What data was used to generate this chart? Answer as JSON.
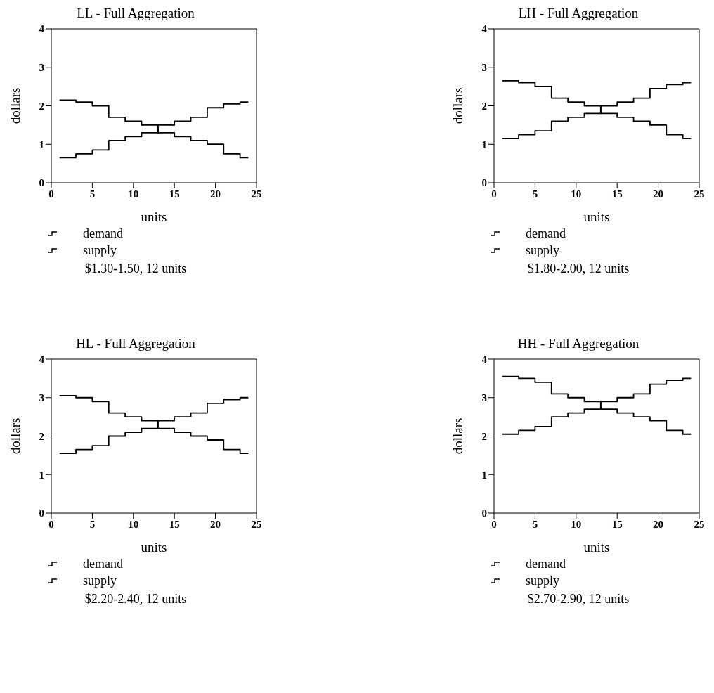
{
  "chart_data": [
    {
      "type": "step",
      "title": "LL - Full Aggregation",
      "xlabel": "units",
      "ylabel": "dollars",
      "xlim": [
        0,
        25
      ],
      "xticks": [
        0,
        5,
        10,
        15,
        20,
        25
      ],
      "ylim": [
        0,
        4
      ],
      "yticks": [
        0,
        1,
        2,
        3,
        4
      ],
      "grid": false,
      "legend": "bottom",
      "marker": "none",
      "line_style": "solid",
      "annotations": [
        "$1.30-1.50, 12 units"
      ],
      "series": [
        {
          "name": "demand",
          "color": "#000000",
          "x": [
            1,
            3,
            5,
            7,
            9,
            11,
            13,
            15,
            17,
            19,
            21,
            23,
            24
          ],
          "values": [
            2.15,
            2.1,
            2.0,
            1.7,
            1.6,
            1.5,
            1.3,
            1.2,
            1.1,
            1.0,
            0.75,
            0.65,
            0.65
          ]
        },
        {
          "name": "supply",
          "color": "#000000",
          "x": [
            1,
            3,
            5,
            7,
            9,
            11,
            13,
            15,
            17,
            19,
            21,
            23,
            24
          ],
          "values": [
            0.65,
            0.75,
            0.85,
            1.1,
            1.2,
            1.3,
            1.5,
            1.6,
            1.7,
            1.95,
            2.05,
            2.1,
            2.1
          ]
        }
      ]
    },
    {
      "type": "step",
      "title": "LH - Full Aggregation",
      "xlabel": "units",
      "ylabel": "dollars",
      "xlim": [
        0,
        25
      ],
      "xticks": [
        0,
        5,
        10,
        15,
        20,
        25
      ],
      "ylim": [
        0,
        4
      ],
      "yticks": [
        0,
        1,
        2,
        3,
        4
      ],
      "grid": false,
      "legend": "bottom",
      "marker": "none",
      "line_style": "solid",
      "annotations": [
        "$1.80-2.00, 12 units"
      ],
      "series": [
        {
          "name": "demand",
          "color": "#000000",
          "x": [
            1,
            3,
            5,
            7,
            9,
            11,
            13,
            15,
            17,
            19,
            21,
            23,
            24
          ],
          "values": [
            2.65,
            2.6,
            2.5,
            2.2,
            2.1,
            2.0,
            1.8,
            1.7,
            1.6,
            1.5,
            1.25,
            1.15,
            1.15
          ]
        },
        {
          "name": "supply",
          "color": "#000000",
          "x": [
            1,
            3,
            5,
            7,
            9,
            11,
            13,
            15,
            17,
            19,
            21,
            23,
            24
          ],
          "values": [
            1.15,
            1.25,
            1.35,
            1.6,
            1.7,
            1.8,
            2.0,
            2.1,
            2.2,
            2.45,
            2.55,
            2.6,
            2.6
          ]
        }
      ]
    },
    {
      "type": "step",
      "title": "HL - Full Aggregation",
      "xlabel": "units",
      "ylabel": "dollars",
      "xlim": [
        0,
        25
      ],
      "xticks": [
        0,
        5,
        10,
        15,
        20,
        25
      ],
      "ylim": [
        0,
        4
      ],
      "yticks": [
        0,
        1,
        2,
        3,
        4
      ],
      "grid": false,
      "legend": "bottom",
      "marker": "none",
      "line_style": "solid",
      "annotations": [
        "$2.20-2.40, 12 units"
      ],
      "series": [
        {
          "name": "demand",
          "color": "#000000",
          "x": [
            1,
            3,
            5,
            7,
            9,
            11,
            13,
            15,
            17,
            19,
            21,
            23,
            24
          ],
          "values": [
            3.05,
            3.0,
            2.9,
            2.6,
            2.5,
            2.4,
            2.2,
            2.1,
            2.0,
            1.9,
            1.65,
            1.55,
            1.55
          ]
        },
        {
          "name": "supply",
          "color": "#000000",
          "x": [
            1,
            3,
            5,
            7,
            9,
            11,
            13,
            15,
            17,
            19,
            21,
            23,
            24
          ],
          "values": [
            1.55,
            1.65,
            1.75,
            2.0,
            2.1,
            2.2,
            2.4,
            2.5,
            2.6,
            2.85,
            2.95,
            3.0,
            3.0
          ]
        }
      ]
    },
    {
      "type": "step",
      "title": "HH - Full Aggregation",
      "xlabel": "units",
      "ylabel": "dollars",
      "xlim": [
        0,
        25
      ],
      "xticks": [
        0,
        5,
        10,
        15,
        20,
        25
      ],
      "ylim": [
        0,
        4
      ],
      "yticks": [
        0,
        1,
        2,
        3,
        4
      ],
      "grid": false,
      "legend": "bottom",
      "marker": "none",
      "line_style": "solid",
      "annotations": [
        "$2.70-2.90, 12 units"
      ],
      "series": [
        {
          "name": "demand",
          "color": "#000000",
          "x": [
            1,
            3,
            5,
            7,
            9,
            11,
            13,
            15,
            17,
            19,
            21,
            23,
            24
          ],
          "values": [
            3.55,
            3.5,
            3.4,
            3.1,
            3.0,
            2.9,
            2.7,
            2.6,
            2.5,
            2.4,
            2.15,
            2.05,
            2.05
          ]
        },
        {
          "name": "supply",
          "color": "#000000",
          "x": [
            1,
            3,
            5,
            7,
            9,
            11,
            13,
            15,
            17,
            19,
            21,
            23,
            24
          ],
          "values": [
            2.05,
            2.15,
            2.25,
            2.5,
            2.6,
            2.7,
            2.9,
            3.0,
            3.1,
            3.35,
            3.45,
            3.5,
            3.5
          ]
        }
      ]
    }
  ]
}
